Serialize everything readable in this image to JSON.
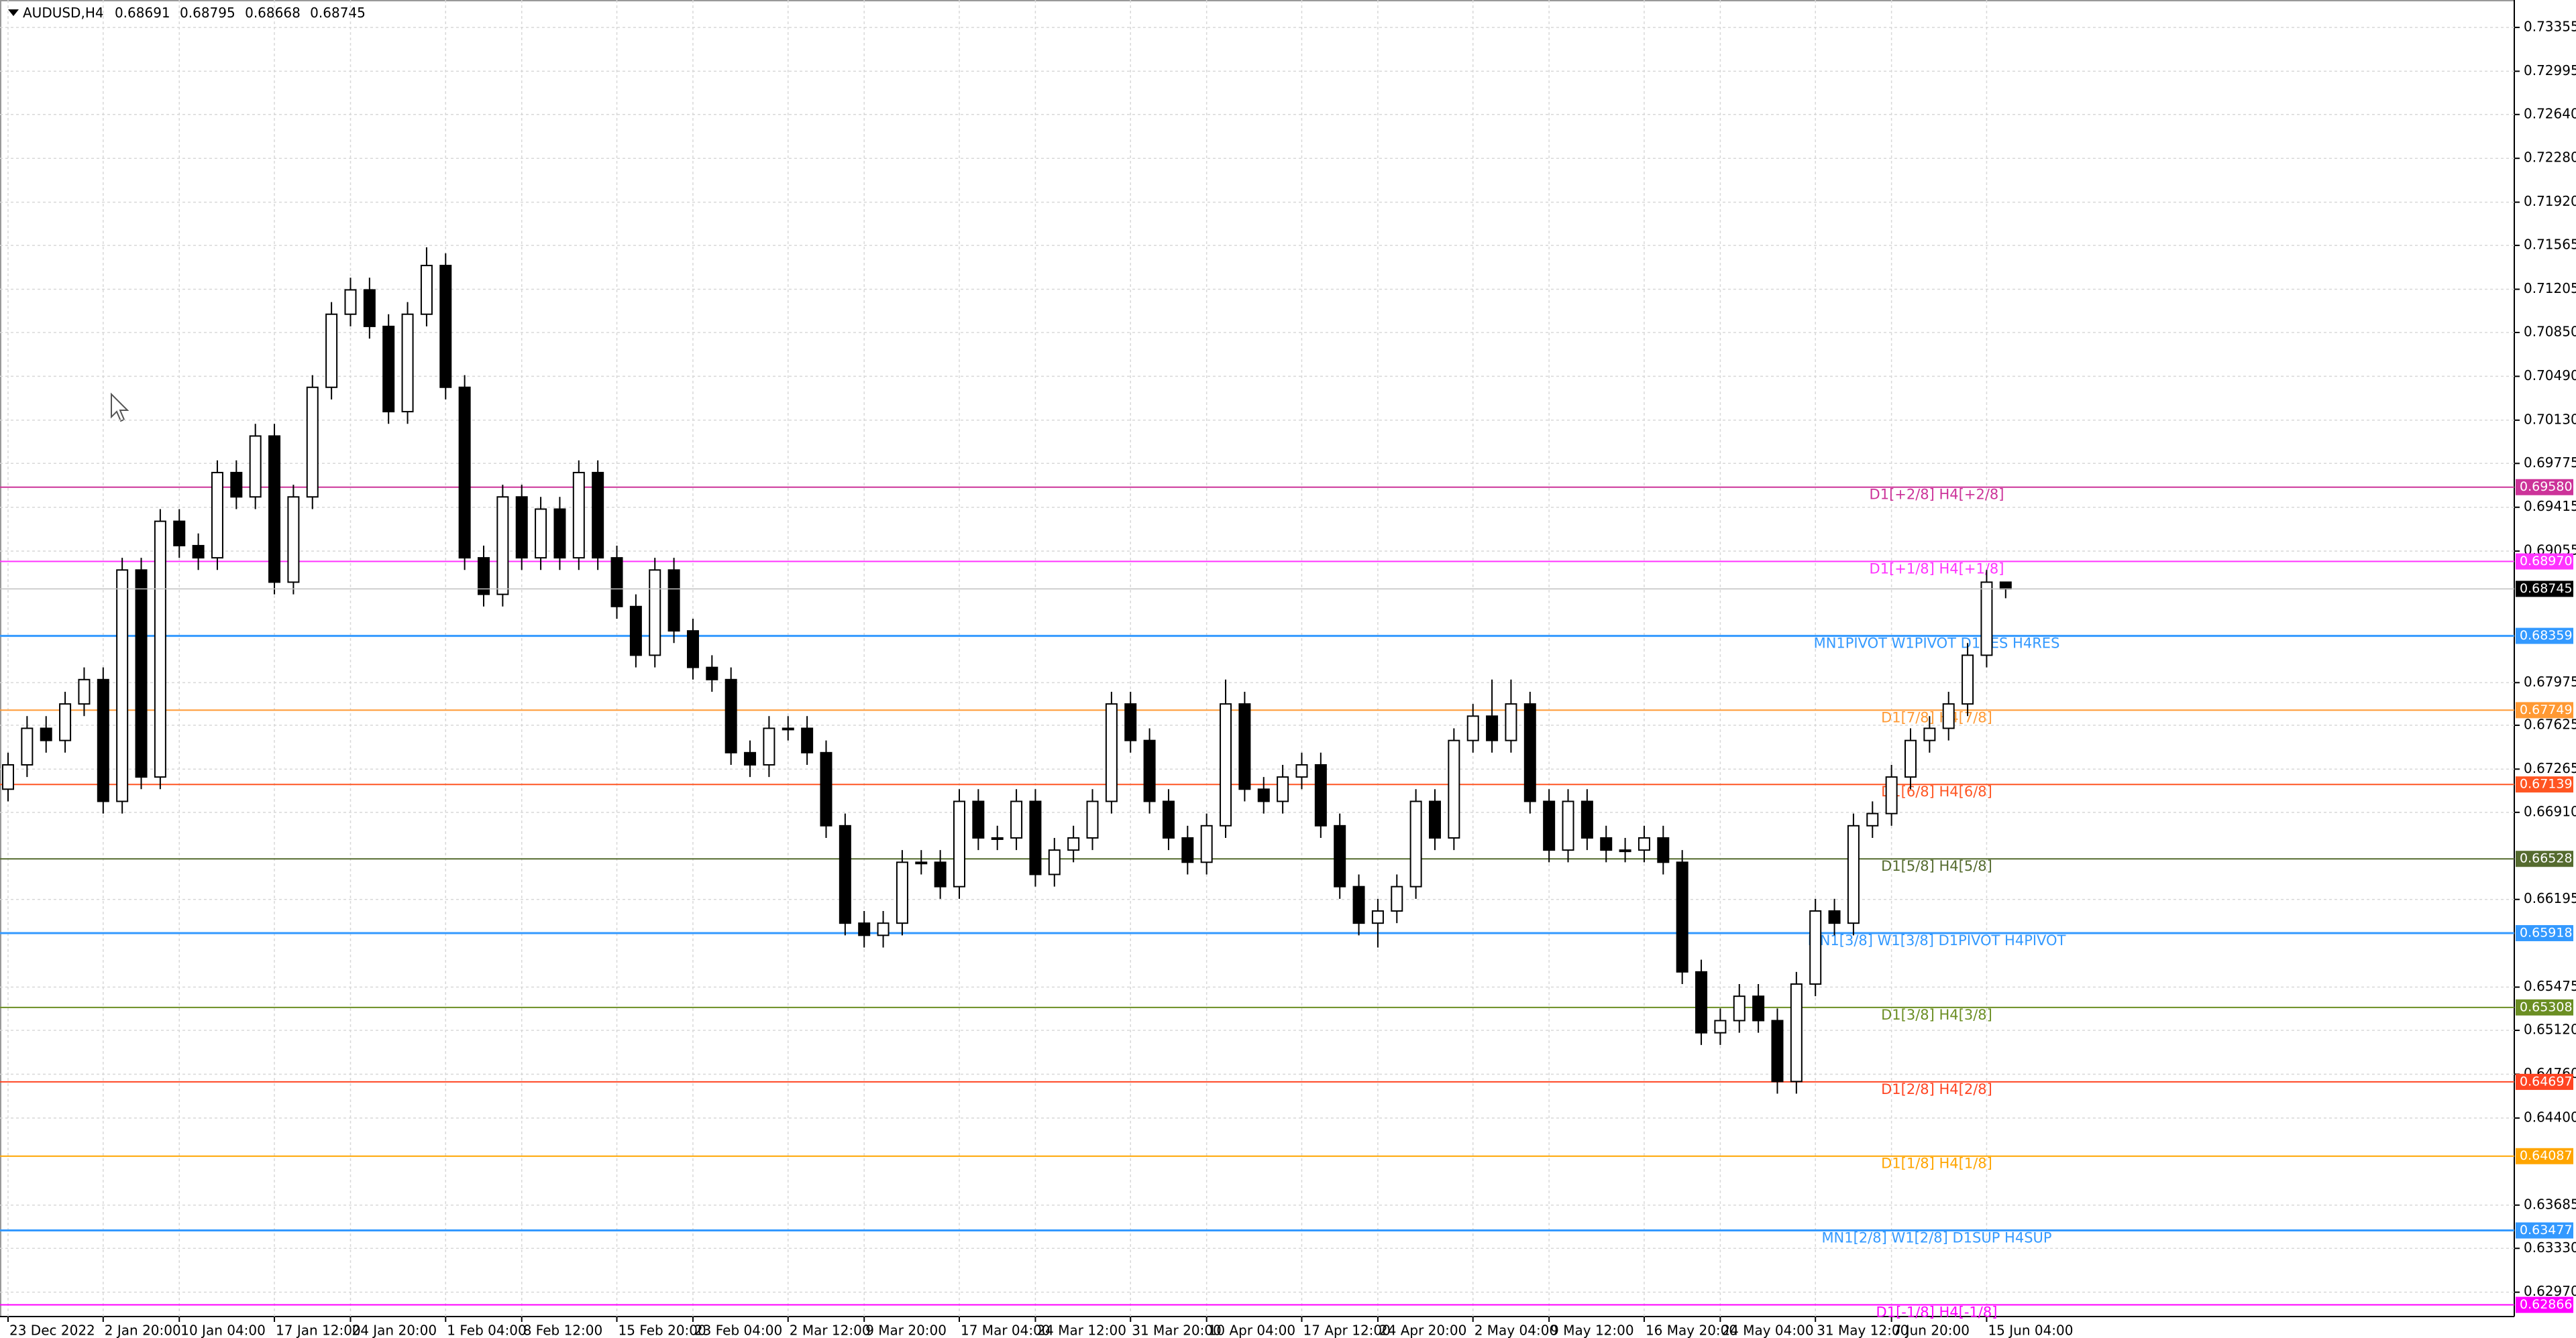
{
  "chart_data": {
    "type": "candlestick",
    "title": "AUDUSD,H4",
    "quote": [
      0.68691,
      0.68795,
      0.68668,
      0.68745
    ],
    "categories": [
      "23 Dec 2022",
      null,
      null,
      null,
      null,
      "2 Jan 20:00",
      null,
      null,
      null,
      "10 Jan 04:00",
      null,
      null,
      null,
      null,
      "17 Jan 12:00",
      null,
      null,
      null,
      "24 Jan 20:00",
      null,
      null,
      null,
      null,
      "1 Feb 04:00",
      null,
      null,
      null,
      "8 Feb 12:00",
      null,
      null,
      null,
      null,
      "15 Feb 20:00",
      null,
      null,
      null,
      "23 Feb 04:00",
      null,
      null,
      null,
      null,
      "2 Mar 12:00",
      null,
      null,
      null,
      "9 Mar 20:00",
      null,
      null,
      null,
      null,
      "17 Mar 04:00",
      null,
      null,
      null,
      "24 Mar 12:00",
      null,
      null,
      null,
      null,
      "31 Mar 20:00",
      null,
      null,
      null,
      "10 Apr 04:00",
      null,
      null,
      null,
      null,
      "17 Apr 12:00",
      null,
      null,
      null,
      "24 Apr 20:00",
      null,
      null,
      null,
      null,
      "2 May 04:00",
      null,
      null,
      null,
      "9 May 12:00",
      null,
      null,
      null,
      null,
      "16 May 20:00",
      null,
      null,
      null,
      "24 May 04:00",
      null,
      null,
      null,
      null,
      "31 May 12:00",
      null,
      null,
      null,
      "7 Jun 20:00",
      null,
      null,
      null,
      null,
      "15 Jun 04:00",
      null
    ],
    "open": [
      0.671,
      0.673,
      0.676,
      0.675,
      0.678,
      0.68,
      0.67,
      0.689,
      0.672,
      0.693,
      0.691,
      0.69,
      0.697,
      0.695,
      0.7,
      0.688,
      0.695,
      0.704,
      0.71,
      0.712,
      0.709,
      0.702,
      0.71,
      0.714,
      0.704,
      0.69,
      0.687,
      0.695,
      0.69,
      0.694,
      0.69,
      0.697,
      0.69,
      0.686,
      0.682,
      0.689,
      0.684,
      0.681,
      0.68,
      0.674,
      0.673,
      0.676,
      0.676,
      0.674,
      0.668,
      0.66,
      0.659,
      0.66,
      0.665,
      0.665,
      0.663,
      0.67,
      0.667,
      0.667,
      0.67,
      0.664,
      0.666,
      0.667,
      0.67,
      0.678,
      0.675,
      0.67,
      0.667,
      0.665,
      0.668,
      0.678,
      0.671,
      0.67,
      0.672,
      0.673,
      0.668,
      0.663,
      0.66,
      0.661,
      0.663,
      0.67,
      0.667,
      0.675,
      0.677,
      0.675,
      0.678,
      0.67,
      0.666,
      0.67,
      0.667,
      0.666,
      0.666,
      0.667,
      0.665,
      0.656,
      0.651,
      0.652,
      0.654,
      0.652,
      0.647,
      0.655,
      0.661,
      0.66,
      0.668,
      0.669,
      0.672,
      0.675,
      0.676,
      0.678,
      0.682,
      0.688
    ],
    "high": [
      0.674,
      0.677,
      0.677,
      0.679,
      0.681,
      0.681,
      0.69,
      0.69,
      0.694,
      0.694,
      0.692,
      0.698,
      0.698,
      0.701,
      0.701,
      0.696,
      0.705,
      0.711,
      0.713,
      0.713,
      0.71,
      0.711,
      0.7155,
      0.715,
      0.705,
      0.691,
      0.696,
      0.696,
      0.695,
      0.695,
      0.698,
      0.698,
      0.691,
      0.687,
      0.69,
      0.69,
      0.685,
      0.682,
      0.681,
      0.675,
      0.677,
      0.677,
      0.677,
      0.675,
      0.669,
      0.661,
      0.661,
      0.666,
      0.666,
      0.666,
      0.671,
      0.671,
      0.668,
      0.671,
      0.671,
      0.667,
      0.668,
      0.671,
      0.679,
      0.679,
      0.676,
      0.671,
      0.668,
      0.669,
      0.68,
      0.679,
      0.672,
      0.673,
      0.674,
      0.674,
      0.669,
      0.664,
      0.662,
      0.664,
      0.671,
      0.671,
      0.676,
      0.678,
      0.68,
      0.68,
      0.679,
      0.671,
      0.671,
      0.671,
      0.668,
      0.667,
      0.668,
      0.668,
      0.666,
      0.657,
      0.653,
      0.655,
      0.655,
      0.653,
      0.656,
      0.662,
      0.662,
      0.669,
      0.67,
      0.673,
      0.676,
      0.677,
      0.679,
      0.683,
      0.689,
      0.68795
    ],
    "low": [
      0.67,
      0.672,
      0.674,
      0.674,
      0.677,
      0.669,
      0.669,
      0.671,
      0.671,
      0.69,
      0.689,
      0.689,
      0.694,
      0.694,
      0.687,
      0.687,
      0.694,
      0.703,
      0.709,
      0.708,
      0.701,
      0.701,
      0.709,
      0.703,
      0.689,
      0.686,
      0.686,
      0.689,
      0.689,
      0.689,
      0.689,
      0.689,
      0.685,
      0.681,
      0.681,
      0.683,
      0.68,
      0.679,
      0.673,
      0.672,
      0.672,
      0.675,
      0.673,
      0.667,
      0.659,
      0.658,
      0.658,
      0.659,
      0.664,
      0.662,
      0.662,
      0.666,
      0.666,
      0.666,
      0.663,
      0.663,
      0.665,
      0.666,
      0.669,
      0.674,
      0.669,
      0.666,
      0.664,
      0.664,
      0.667,
      0.67,
      0.669,
      0.669,
      0.671,
      0.667,
      0.662,
      0.659,
      0.658,
      0.66,
      0.662,
      0.666,
      0.666,
      0.674,
      0.674,
      0.674,
      0.669,
      0.665,
      0.665,
      0.666,
      0.665,
      0.665,
      0.665,
      0.664,
      0.655,
      0.65,
      0.65,
      0.651,
      0.651,
      0.646,
      0.646,
      0.654,
      0.659,
      0.659,
      0.667,
      0.668,
      0.671,
      0.674,
      0.675,
      0.677,
      0.681,
      0.68668
    ],
    "close": [
      0.673,
      0.676,
      0.675,
      0.678,
      0.68,
      0.67,
      0.689,
      0.672,
      0.693,
      0.691,
      0.69,
      0.697,
      0.695,
      0.7,
      0.688,
      0.695,
      0.704,
      0.71,
      0.712,
      0.709,
      0.702,
      0.71,
      0.714,
      0.704,
      0.69,
      0.687,
      0.695,
      0.69,
      0.694,
      0.69,
      0.697,
      0.69,
      0.686,
      0.682,
      0.689,
      0.684,
      0.681,
      0.68,
      0.674,
      0.673,
      0.676,
      0.676,
      0.674,
      0.668,
      0.66,
      0.659,
      0.66,
      0.665,
      0.665,
      0.663,
      0.67,
      0.667,
      0.667,
      0.67,
      0.664,
      0.666,
      0.667,
      0.67,
      0.678,
      0.675,
      0.67,
      0.667,
      0.665,
      0.668,
      0.678,
      0.671,
      0.67,
      0.672,
      0.673,
      0.668,
      0.663,
      0.66,
      0.661,
      0.663,
      0.67,
      0.667,
      0.675,
      0.677,
      0.675,
      0.678,
      0.67,
      0.666,
      0.67,
      0.667,
      0.666,
      0.666,
      0.667,
      0.665,
      0.656,
      0.651,
      0.652,
      0.654,
      0.652,
      0.647,
      0.655,
      0.661,
      0.66,
      0.668,
      0.669,
      0.672,
      0.675,
      0.676,
      0.678,
      0.682,
      0.688,
      0.68745
    ],
    "ylim": [
      0.6277,
      0.7358
    ],
    "yticks": [
      0.73355,
      0.72995,
      {
        "value": 0.7264,
        "label": "0.72640"
      },
      {
        "value": 0.7228,
        "label": "0.72280"
      },
      {
        "value": 0.7192,
        "label": "0.71920"
      },
      0.71565,
      0.71205,
      {
        "value": 0.7085,
        "label": "0.70850"
      },
      {
        "value": 0.7049,
        "label": "0.70490"
      },
      {
        "value": 0.7013,
        "label": "0.70130"
      },
      0.69775,
      0.69415,
      0.69055,
      0.67975,
      0.67625,
      0.67265,
      {
        "value": 0.6691,
        "label": "0.66910"
      },
      0.66195,
      0.65475,
      {
        "value": 0.6512,
        "label": "0.65120"
      },
      {
        "value": 0.6476,
        "label": "0.64760"
      },
      {
        "value": 0.644,
        "label": "0.64400"
      },
      0.63685,
      {
        "value": 0.6333,
        "label": "0.63330"
      },
      {
        "value": 0.6297,
        "label": "0.62970"
      }
    ],
    "grid": true,
    "levels": [
      {
        "value": 0.6958,
        "value_label": "0.69580",
        "label": "D1[+2/8] H4[+2/8]",
        "color": "#cc3399"
      },
      {
        "value": 0.6897,
        "value_label": "0.68970",
        "label": "D1[+1/8] H4[+1/8]",
        "color": "#ff33ff"
      },
      {
        "value": 0.68359,
        "value_label": "0.68359",
        "label": "MN1PIVOT W1PIVOT D1RES H4RES",
        "color": "#3399ff"
      },
      {
        "value": 0.67749,
        "value_label": "0.67749",
        "label": "D1[7/8] H4[7/8]",
        "color": "#ff9933"
      },
      {
        "value": 0.67139,
        "value_label": "0.67139",
        "label": "D1[6/8] H4[6/8]",
        "color": "#ff5522"
      },
      {
        "value": 0.66528,
        "value_label": "0.66528",
        "label": "D1[5/8] H4[5/8]",
        "color": "#556b2f"
      },
      {
        "value": 0.65918,
        "value_label": "0.65918",
        "label": "MN1[3/8] W1[3/8] D1PIVOT H4PIVOT",
        "color": "#3399ff"
      },
      {
        "value": 0.65308,
        "value_label": "0.65308",
        "label": "D1[3/8] H4[3/8]",
        "color": "#6b8e23"
      },
      {
        "value": 0.64697,
        "value_label": "0.64697",
        "label": "D1[2/8] H4[2/8]",
        "color": "#ff4422"
      },
      {
        "value": 0.64087,
        "value_label": "0.64087",
        "label": "D1[1/8] H4[1/8]",
        "color": "#ffa500"
      },
      {
        "value": 0.63477,
        "value_label": "0.63477",
        "label": "MN1[2/8] W1[2/8] D1SUP H4SUP",
        "color": "#3399ff"
      },
      {
        "value": 0.62866,
        "value_label": "0.62866",
        "label": "D1[-1/8] H4[-1/8]",
        "color": "#ff00ff"
      }
    ]
  }
}
